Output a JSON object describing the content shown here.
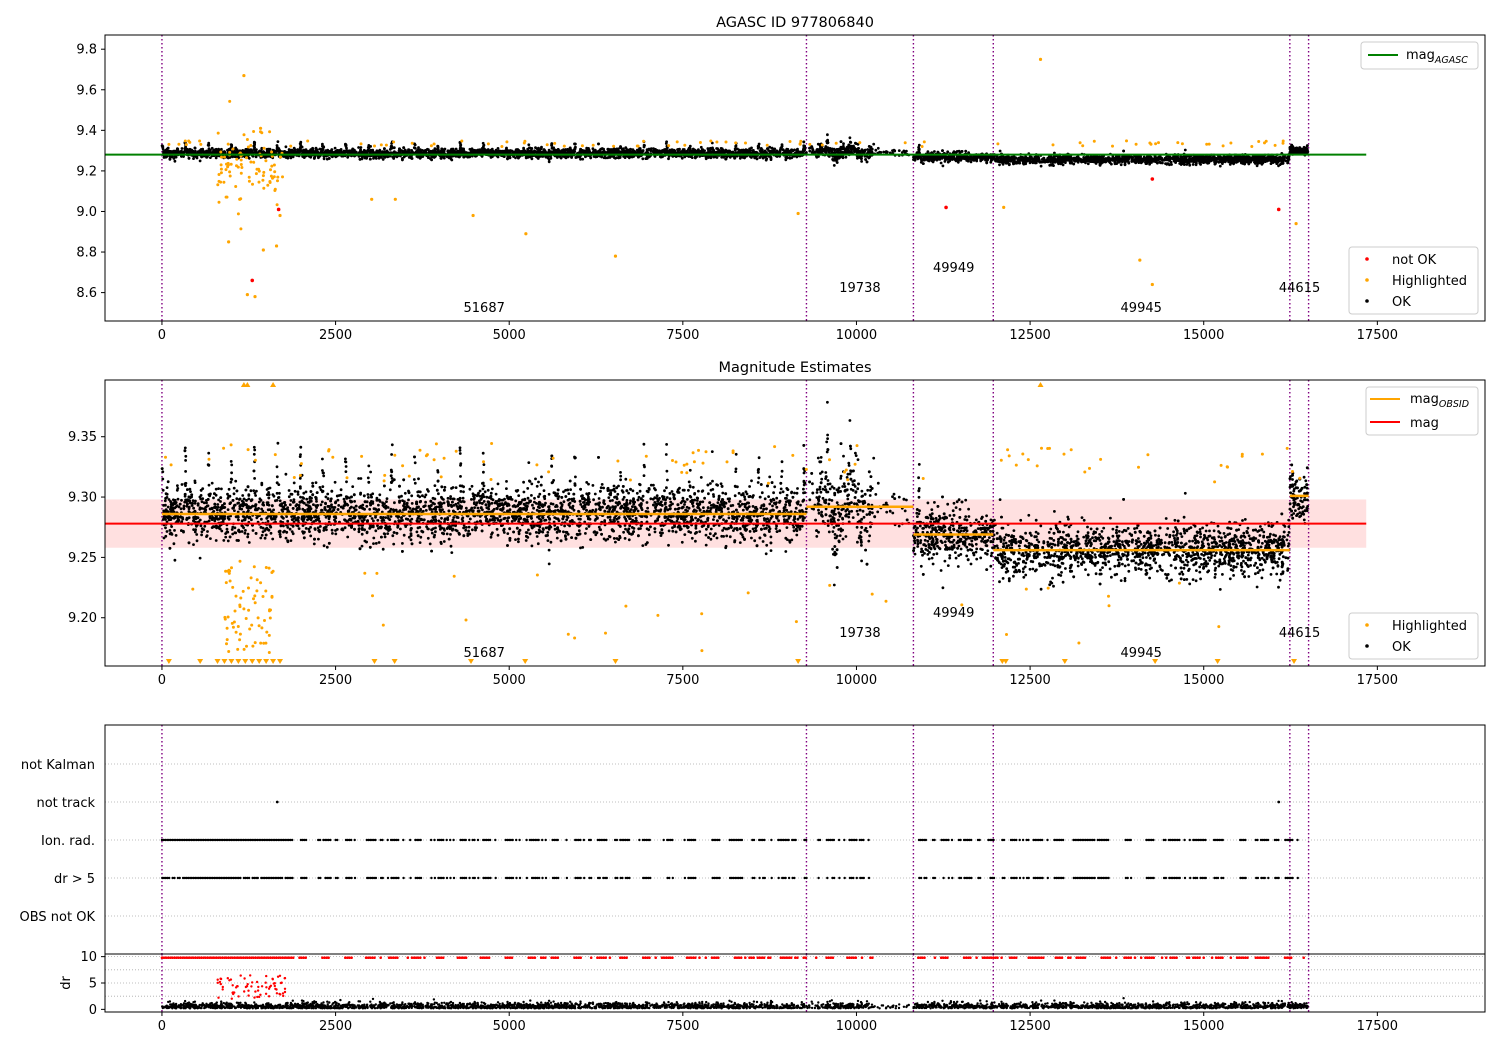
{
  "figure": {
    "title": "AGASC ID 977806840",
    "obsid_boundaries": [
      0,
      9280,
      10820,
      11970,
      16240,
      16510
    ],
    "obsid_labels": [
      {
        "text": "51687",
        "x": 4640,
        "row": 2
      },
      {
        "text": "19738",
        "x": 10050,
        "row": 1
      },
      {
        "text": "49949",
        "x": 11400,
        "row": 0
      },
      {
        "text": "49945",
        "x": 14100,
        "row": 2
      },
      {
        "text": "44615",
        "x": 16380,
        "row": 1
      }
    ]
  },
  "chart_data": [
    {
      "id": "top",
      "type": "scatter",
      "title": "AGASC ID 977806840",
      "xlim": [
        -820,
        19050
      ],
      "ylim": [
        8.46,
        9.87
      ],
      "xticks": [
        "0",
        "2500",
        "5000",
        "7500",
        "10000",
        "12500",
        "15000",
        "17500"
      ],
      "xtick_values": [
        0,
        2500,
        5000,
        7500,
        10000,
        12500,
        15000,
        17500
      ],
      "yticks": [
        "8.6",
        "8.8",
        "9.0",
        "9.2",
        "9.4",
        "9.6",
        "9.8"
      ],
      "ytick_values": [
        8.6,
        8.8,
        9.0,
        9.2,
        9.4,
        9.6,
        9.8
      ],
      "mag_agasc": {
        "value": 9.28,
        "x_range": [
          -820,
          17340
        ],
        "color": "#008000"
      },
      "legend_upper": [
        {
          "label": "mag",
          "sub": "AGASC",
          "color": "#008000"
        }
      ],
      "legend_lower": [
        {
          "label": "not OK",
          "color": "#ff0000"
        },
        {
          "label": "Highlighted",
          "color": "#ffa500"
        },
        {
          "label": "OK",
          "color": "#000000"
        }
      ],
      "highlighted_points": [
        [
          1180,
          9.67
        ],
        [
          1420,
          9.41
        ],
        [
          1230,
          8.59
        ],
        [
          1340,
          8.58
        ],
        [
          960,
          8.85
        ],
        [
          1460,
          8.81
        ],
        [
          1650,
          8.83
        ],
        [
          3020,
          9.06
        ],
        [
          3360,
          9.06
        ],
        [
          4480,
          8.98
        ],
        [
          5240,
          8.89
        ],
        [
          6530,
          8.78
        ],
        [
          9160,
          8.99
        ],
        [
          12120,
          9.02
        ],
        [
          12650,
          9.75
        ],
        [
          14080,
          8.76
        ],
        [
          14260,
          8.64
        ],
        [
          16330,
          8.94
        ],
        [
          1700,
          8.98
        ],
        [
          1120,
          9.06
        ]
      ],
      "not_ok_points": [
        [
          1300,
          8.66
        ],
        [
          1680,
          9.01
        ],
        [
          11290,
          9.02
        ],
        [
          14260,
          9.16
        ],
        [
          16080,
          9.01
        ]
      ]
    },
    {
      "id": "middle",
      "type": "scatter",
      "title": "Magnitude Estimates",
      "xlim": [
        -820,
        19050
      ],
      "ylim": [
        9.16,
        9.397
      ],
      "xticks": [
        "0",
        "2500",
        "5000",
        "7500",
        "10000",
        "12500",
        "15000",
        "17500"
      ],
      "xtick_values": [
        0,
        2500,
        5000,
        7500,
        10000,
        12500,
        15000,
        17500
      ],
      "yticks": [
        "9.20",
        "9.25",
        "9.30",
        "9.35"
      ],
      "ytick_values": [
        9.2,
        9.25,
        9.3,
        9.35
      ],
      "mag": {
        "value": 9.278,
        "band": [
          9.258,
          9.298
        ],
        "x_range": [
          -820,
          17340
        ],
        "color": "#ff0000"
      },
      "mag_obsid": [
        {
          "x": [
            0,
            9280
          ],
          "value": 9.286
        },
        {
          "x": [
            9280,
            10820
          ],
          "value": 9.292
        },
        {
          "x": [
            10820,
            11970
          ],
          "value": 9.269
        },
        {
          "x": [
            11970,
            16240
          ],
          "value": 9.256
        },
        {
          "x": [
            16240,
            16510
          ],
          "value": 9.301
        }
      ],
      "legend_upper": [
        {
          "label": "mag",
          "sub": "OBSID",
          "color": "#ffa500"
        },
        {
          "label": "mag",
          "sub": "",
          "color": "#ff0000"
        }
      ],
      "legend_lower": [
        {
          "label": "Highlighted",
          "color": "#ffa500"
        },
        {
          "label": "OK",
          "color": "#000000"
        }
      ]
    },
    {
      "id": "flags",
      "type": "scatter",
      "xlim": [
        -820,
        19050
      ],
      "categories": [
        "not Kalman",
        "not track",
        "Ion. rad.",
        "dr > 5",
        "OBS not OK"
      ],
      "not_track_points": [
        1660,
        16080
      ]
    },
    {
      "id": "dr",
      "type": "scatter",
      "xlim": [
        -820,
        19050
      ],
      "ylim": [
        -0.5,
        10.5
      ],
      "ylabel": "dr",
      "xticks": [
        "0",
        "2500",
        "5000",
        "7500",
        "10000",
        "12500",
        "15000",
        "17500"
      ],
      "xtick_values": [
        0,
        2500,
        5000,
        7500,
        10000,
        12500,
        15000,
        17500
      ],
      "yticks": [
        "0",
        "5",
        "10"
      ],
      "ytick_values": [
        0,
        5,
        10
      ]
    }
  ]
}
